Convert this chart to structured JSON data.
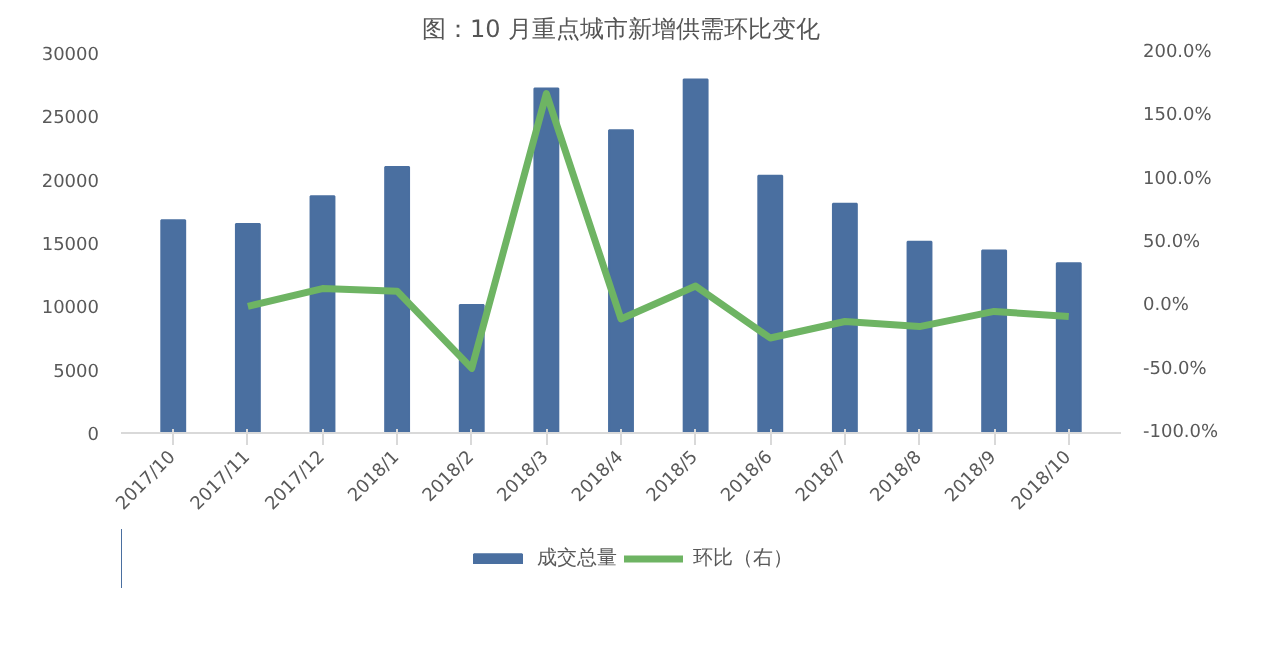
{
  "chart_data": {
    "type": "bar",
    "title": "图：10 月重点城市新增供需环比变化",
    "categories": [
      "2017/10",
      "2017/11",
      "2017/12",
      "2018/1",
      "2018/2",
      "2018/3",
      "2018/4",
      "2018/5",
      "2018/6",
      "2018/7",
      "2018/8",
      "2018/9",
      "2018/10"
    ],
    "series": [
      {
        "name": "成交总量",
        "type": "bar",
        "color": "#4a6fa0",
        "values": [
          16800,
          16500,
          18700,
          21000,
          10100,
          27200,
          23900,
          27900,
          20300,
          18100,
          15100,
          14400,
          13400
        ]
      },
      {
        "name": "环比（右）",
        "type": "line",
        "axis": "y2",
        "color": "#6eb463",
        "values": [
          null,
          0,
          14,
          12,
          -49,
          168,
          -10,
          16,
          -25,
          -12,
          -16,
          -4,
          -8
        ]
      }
    ],
    "ylim": [
      0,
      30000
    ],
    "yticks": [
      0,
      5000,
      10000,
      15000,
      20000,
      25000,
      30000
    ],
    "y2lim": [
      -100,
      200
    ],
    "y2ticks": [
      {
        "value": -100,
        "label": "-100.0%"
      },
      {
        "value": -50,
        "label": "-50.0%"
      },
      {
        "value": 0,
        "label": "0.0%"
      },
      {
        "value": 50,
        "label": "50.0%"
      },
      {
        "value": 100,
        "label": "100.0%"
      },
      {
        "value": 150,
        "label": "150.0%"
      },
      {
        "value": 200,
        "label": "200.0%"
      }
    ],
    "grid": false,
    "legend": "bottom",
    "marker": "none"
  }
}
